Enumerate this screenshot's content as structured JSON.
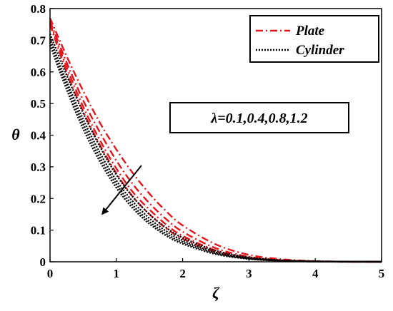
{
  "chart_data": {
    "type": "line",
    "xlabel": "ζ",
    "ylabel": "θ",
    "xlim": [
      0,
      5
    ],
    "ylim": [
      0,
      0.8
    ],
    "xticks": [
      "0",
      "1",
      "2",
      "3",
      "4",
      "5"
    ],
    "yticks": [
      "0",
      "0.1",
      "0.2",
      "0.3",
      "0.4",
      "0.5",
      "0.6",
      "0.7",
      "0.8"
    ],
    "legend": {
      "position": "top-right",
      "entries": [
        {
          "label": "Plate",
          "color": "#e8141c",
          "style": "dash-dot"
        },
        {
          "label": "Cylinder",
          "color": "#000000",
          "style": "dotted"
        }
      ]
    },
    "annotation": "λ=0.1,0.4,0.8,1.2",
    "series": [
      {
        "group": "Plate",
        "color": "#e8141c",
        "style": "dash-dot",
        "x": [
          0,
          0.25,
          0.5,
          0.75,
          1,
          1.25,
          1.5,
          1.75,
          2,
          2.5,
          3,
          3.5,
          4,
          4.5,
          5
        ],
        "values": [
          0.77,
          0.65,
          0.54,
          0.44,
          0.355,
          0.28,
          0.215,
          0.16,
          0.115,
          0.055,
          0.022,
          0.008,
          0.002,
          0.0005,
          0
        ]
      },
      {
        "group": "Plate",
        "color": "#e8141c",
        "style": "dash-dot",
        "x": [
          0,
          0.25,
          0.5,
          0.75,
          1,
          1.25,
          1.5,
          1.75,
          2,
          2.5,
          3,
          3.5,
          4,
          4.5,
          5
        ],
        "values": [
          0.76,
          0.63,
          0.51,
          0.41,
          0.32,
          0.245,
          0.185,
          0.135,
          0.095,
          0.043,
          0.016,
          0.005,
          0.0015,
          0.0003,
          0
        ]
      },
      {
        "group": "Plate",
        "color": "#e8141c",
        "style": "dash-dot",
        "x": [
          0,
          0.25,
          0.5,
          0.75,
          1,
          1.25,
          1.5,
          1.75,
          2,
          2.5,
          3,
          3.5,
          4,
          4.5,
          5
        ],
        "values": [
          0.755,
          0.615,
          0.49,
          0.385,
          0.295,
          0.22,
          0.165,
          0.118,
          0.082,
          0.036,
          0.013,
          0.004,
          0.001,
          0.0002,
          0
        ]
      },
      {
        "group": "Plate",
        "color": "#e8141c",
        "style": "dash-dot",
        "x": [
          0,
          0.25,
          0.5,
          0.75,
          1,
          1.25,
          1.5,
          1.75,
          2,
          2.5,
          3,
          3.5,
          4,
          4.5,
          5
        ],
        "values": [
          0.75,
          0.6,
          0.475,
          0.37,
          0.28,
          0.205,
          0.15,
          0.106,
          0.073,
          0.031,
          0.011,
          0.0035,
          0.001,
          0.0002,
          0
        ]
      },
      {
        "group": "Cylinder",
        "color": "#000000",
        "style": "dotted",
        "x": [
          0,
          0.25,
          0.5,
          0.75,
          1,
          1.25,
          1.5,
          1.75,
          2,
          2.5,
          3,
          3.5,
          4,
          4.5,
          5
        ],
        "values": [
          0.72,
          0.59,
          0.47,
          0.365,
          0.275,
          0.205,
          0.15,
          0.108,
          0.076,
          0.035,
          0.014,
          0.005,
          0.0015,
          0.0003,
          0
        ]
      },
      {
        "group": "Cylinder",
        "color": "#000000",
        "style": "dotted",
        "x": [
          0,
          0.25,
          0.5,
          0.75,
          1,
          1.25,
          1.5,
          1.75,
          2,
          2.5,
          3,
          3.5,
          4,
          4.5,
          5
        ],
        "values": [
          0.705,
          0.57,
          0.45,
          0.345,
          0.257,
          0.19,
          0.137,
          0.097,
          0.068,
          0.03,
          0.012,
          0.004,
          0.001,
          0.0002,
          0
        ]
      },
      {
        "group": "Cylinder",
        "color": "#000000",
        "style": "dotted",
        "x": [
          0,
          0.25,
          0.5,
          0.75,
          1,
          1.25,
          1.5,
          1.75,
          2,
          2.5,
          3,
          3.5,
          4,
          4.5,
          5
        ],
        "values": [
          0.695,
          0.56,
          0.435,
          0.33,
          0.245,
          0.178,
          0.127,
          0.089,
          0.062,
          0.027,
          0.01,
          0.0035,
          0.001,
          0.0002,
          0
        ]
      },
      {
        "group": "Cylinder",
        "color": "#000000",
        "style": "dotted",
        "x": [
          0,
          0.25,
          0.5,
          0.75,
          1,
          1.25,
          1.5,
          1.75,
          2,
          2.5,
          3,
          3.5,
          4,
          4.5,
          5
        ],
        "values": [
          0.685,
          0.545,
          0.42,
          0.318,
          0.234,
          0.169,
          0.12,
          0.083,
          0.057,
          0.024,
          0.009,
          0.003,
          0.0008,
          0.0001,
          0
        ]
      }
    ]
  }
}
